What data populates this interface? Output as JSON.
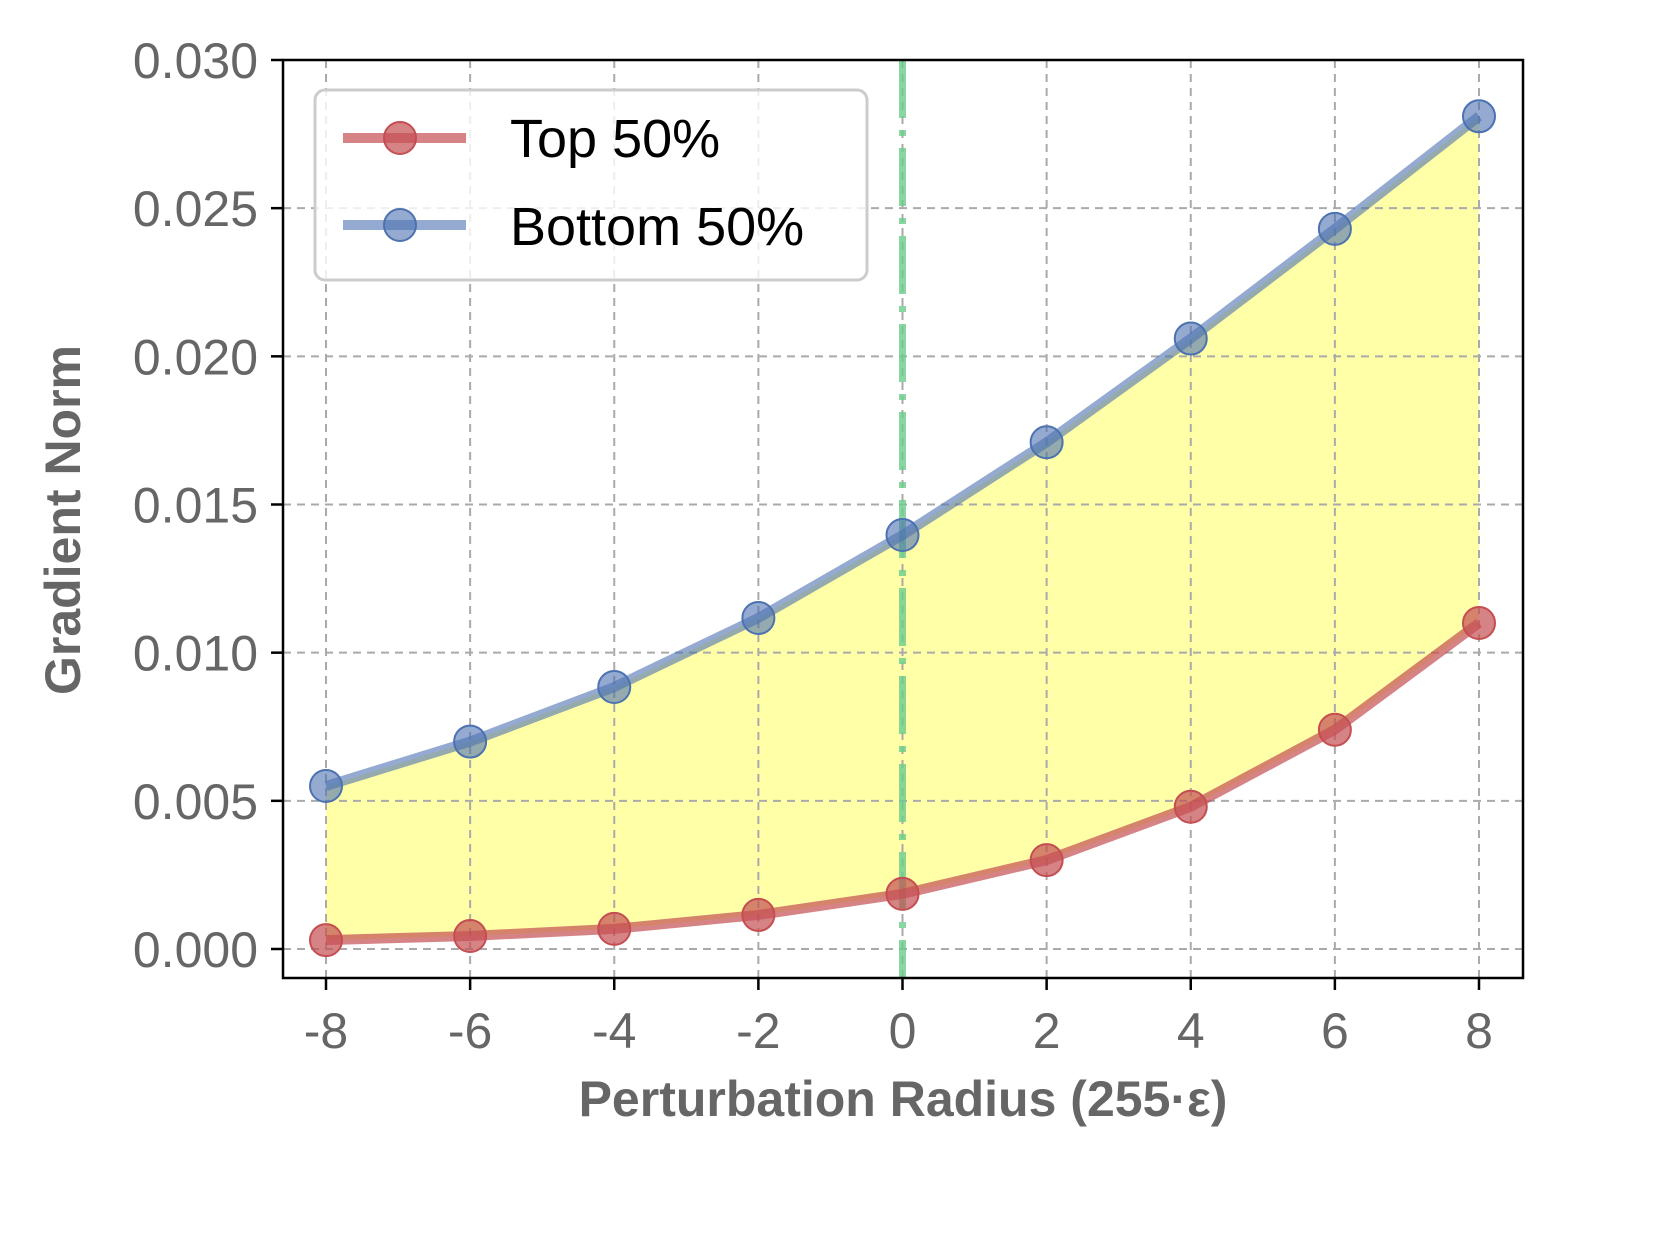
{
  "chart_data": {
    "type": "line",
    "title": "",
    "xlabel": "Perturbation Radius (255·ε)",
    "ylabel": "Gradient Norm",
    "x": [
      -8,
      -6,
      -4,
      -2,
      0,
      2,
      4,
      6,
      8
    ],
    "xticks": [
      "-8",
      "-6",
      "-4",
      "-2",
      "0",
      "2",
      "4",
      "6",
      "8"
    ],
    "yticks": [
      "0.000",
      "0.005",
      "0.010",
      "0.015",
      "0.020",
      "0.025",
      "0.030"
    ],
    "ytick_values": [
      0,
      0.005,
      0.01,
      0.015,
      0.02,
      0.025,
      0.03
    ],
    "ylim": [
      -0.001,
      0.03
    ],
    "xlim": [
      -8.6,
      8.6
    ],
    "grid": true,
    "legend_position": "upper left",
    "series": [
      {
        "name": "Top 50%",
        "color": "#c44e52",
        "marker": "circle",
        "values": [
          0.0003,
          0.00044,
          0.00068,
          0.00115,
          0.00186,
          0.003,
          0.0048,
          0.0074,
          0.011
        ]
      },
      {
        "name": "Bottom 50%",
        "color": "#4c72b0",
        "marker": "circle",
        "values": [
          0.0055,
          0.007,
          0.00884,
          0.01117,
          0.01397,
          0.0171,
          0.0206,
          0.0243,
          0.0281
        ]
      }
    ],
    "fill_between": {
      "series": [
        "Top 50%",
        "Bottom 50%"
      ],
      "color": "#ffff99"
    },
    "annotations": [
      {
        "type": "vline",
        "x": 0,
        "style": "dash-dot",
        "color": "#6acc8a"
      }
    ]
  },
  "legend": {
    "items": [
      {
        "label": "Top 50%"
      },
      {
        "label": "Bottom 50%"
      }
    ]
  },
  "axes": {
    "xlabel": "Perturbation Radius (255·ε)",
    "ylabel": "Gradient Norm"
  }
}
